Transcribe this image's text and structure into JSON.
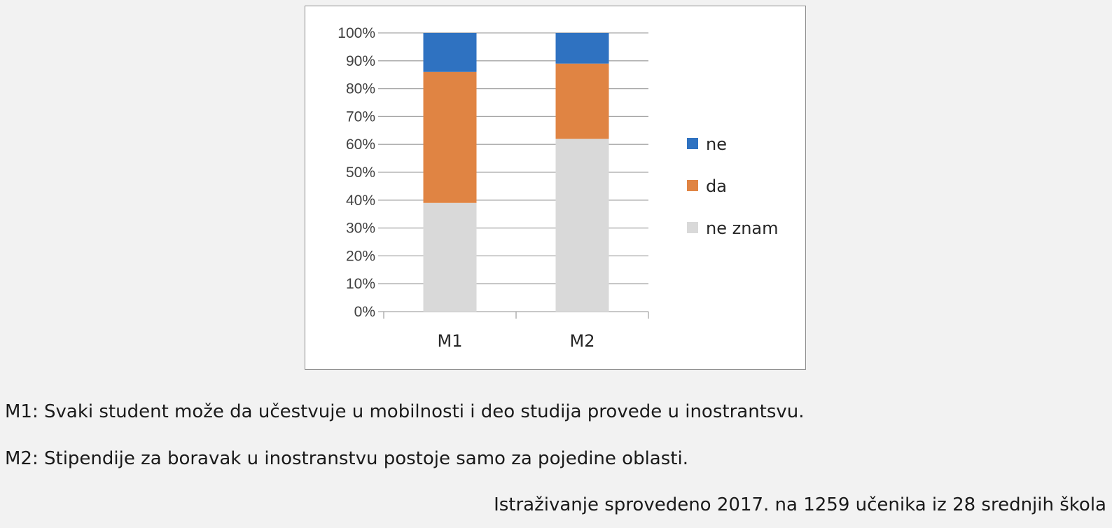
{
  "chart_data": {
    "type": "bar",
    "stacked": true,
    "percent_stacked": true,
    "categories": [
      "M1",
      "M2"
    ],
    "series": [
      {
        "name": "ne znam",
        "values": [
          39,
          62
        ],
        "color": "#d9d9d9"
      },
      {
        "name": "da",
        "values": [
          47,
          27
        ],
        "color": "#e08443"
      },
      {
        "name": "ne",
        "values": [
          14,
          11
        ],
        "color": "#2f72c1"
      }
    ],
    "y_ticks": [
      "0%",
      "10%",
      "20%",
      "30%",
      "40%",
      "50%",
      "60%",
      "70%",
      "80%",
      "90%",
      "100%"
    ],
    "ylim": [
      0,
      100
    ],
    "grid": true,
    "legend_position": "right",
    "legend_order": [
      "ne",
      "da",
      "ne znam"
    ]
  },
  "captions": {
    "m1": "M1: Svaki student može da učestvuje u mobilnosti i deo studija provede u inostrantsvu.",
    "m2": "M2: Stipendije za boravak u inostranstvu postoje samo za pojedine oblasti.",
    "source": "Istraživanje sprovedeno 2017. na 1259 učenika iz 28 srednjih škola"
  }
}
